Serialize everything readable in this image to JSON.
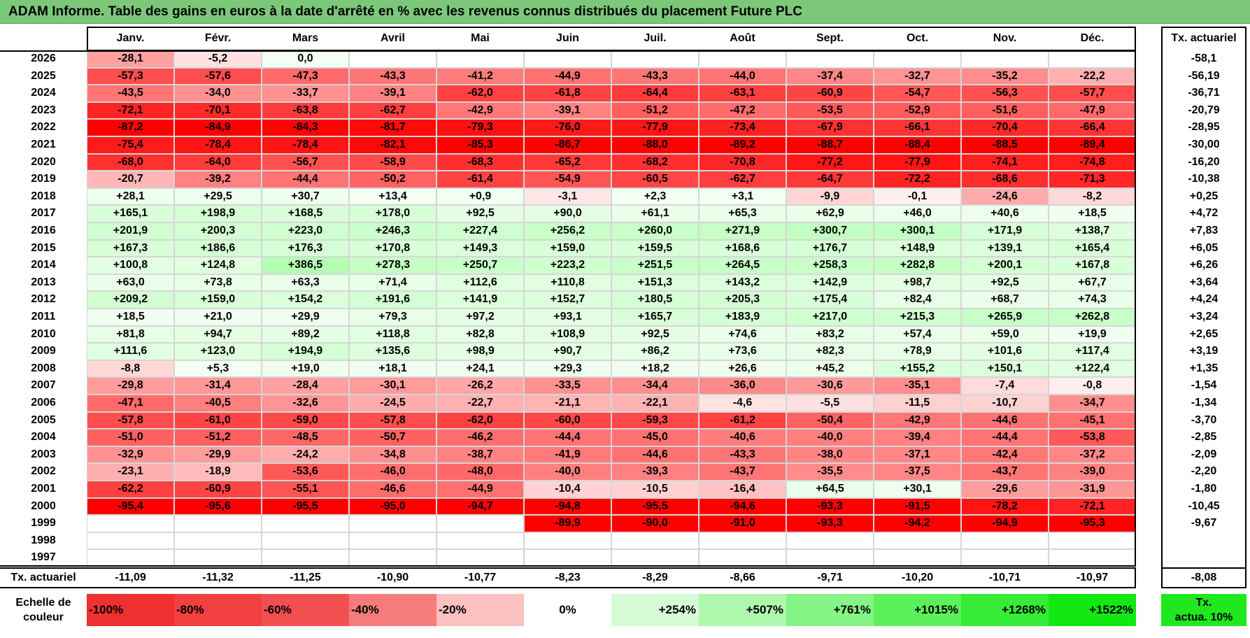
{
  "title": "ADAM Informe. Table des gains en euros à la date d'arrêté en % avec les revenus connus distribués du placement Future PLC",
  "colors": {
    "title_bg": "#7cc87a",
    "neg_strong": "#ff0000",
    "neg_light": "#ffe2e2",
    "pos_light": "#eefaee",
    "pos_strong": "#00ee00"
  },
  "columns": [
    "Janv.",
    "Févr.",
    "Mars",
    "Avril",
    "Mai",
    "Juin",
    "Juil.",
    "Août",
    "Sept.",
    "Oct.",
    "Nov.",
    "Déc."
  ],
  "annual_header": "Tx. actuariel",
  "rows": [
    {
      "year": "2026",
      "values": [
        "-28,1",
        "-5,2",
        "0,0",
        "",
        "",
        "",
        "",
        "",
        "",
        "",
        "",
        ""
      ],
      "annual": "-58,1"
    },
    {
      "year": "2025",
      "values": [
        "-57,3",
        "-57,6",
        "-47,3",
        "-43,3",
        "-41,2",
        "-44,9",
        "-43,3",
        "-44,0",
        "-37,4",
        "-32,7",
        "-35,2",
        "-22,2"
      ],
      "annual": "-56,19"
    },
    {
      "year": "2024",
      "values": [
        "-43,5",
        "-34,0",
        "-33,7",
        "-39,1",
        "-62,0",
        "-61,8",
        "-64,4",
        "-63,1",
        "-60,9",
        "-54,7",
        "-56,3",
        "-57,7"
      ],
      "annual": "-36,71"
    },
    {
      "year": "2023",
      "values": [
        "-72,1",
        "-70,1",
        "-63,8",
        "-62,7",
        "-42,9",
        "-39,1",
        "-51,2",
        "-47,2",
        "-53,5",
        "-52,9",
        "-51,6",
        "-47,9"
      ],
      "annual": "-20,79"
    },
    {
      "year": "2022",
      "values": [
        "-87,2",
        "-84,9",
        "-84,3",
        "-81,7",
        "-79,3",
        "-76,0",
        "-77,9",
        "-73,4",
        "-67,9",
        "-66,1",
        "-70,4",
        "-66,4"
      ],
      "annual": "-28,95"
    },
    {
      "year": "2021",
      "values": [
        "-75,4",
        "-78,4",
        "-78,4",
        "-82,1",
        "-85,3",
        "-86,7",
        "-88,0",
        "-89,2",
        "-88,7",
        "-88,4",
        "-88,5",
        "-89,4"
      ],
      "annual": "-30,00"
    },
    {
      "year": "2020",
      "values": [
        "-68,0",
        "-64,0",
        "-56,7",
        "-58,9",
        "-68,3",
        "-65,2",
        "-68,2",
        "-70,8",
        "-77,2",
        "-77,9",
        "-74,1",
        "-74,8"
      ],
      "annual": "-16,20"
    },
    {
      "year": "2019",
      "values": [
        "-20,7",
        "-39,2",
        "-44,4",
        "-50,2",
        "-61,4",
        "-54,9",
        "-60,5",
        "-62,7",
        "-64,7",
        "-72,2",
        "-68,6",
        "-71,3"
      ],
      "annual": "-10,38"
    },
    {
      "year": "2018",
      "values": [
        "+28,1",
        "+29,5",
        "+30,7",
        "+13,4",
        "+0,9",
        "-3,1",
        "+2,3",
        "+3,1",
        "-9,9",
        "-0,1",
        "-24,6",
        "-8,2"
      ],
      "annual": "+0,25"
    },
    {
      "year": "2017",
      "values": [
        "+165,1",
        "+198,9",
        "+168,5",
        "+178,0",
        "+92,5",
        "+90,0",
        "+61,1",
        "+65,3",
        "+62,9",
        "+46,0",
        "+40,6",
        "+18,5"
      ],
      "annual": "+4,72"
    },
    {
      "year": "2016",
      "values": [
        "+201,9",
        "+200,3",
        "+223,0",
        "+246,3",
        "+227,4",
        "+256,2",
        "+260,0",
        "+271,9",
        "+300,7",
        "+300,1",
        "+171,9",
        "+138,7"
      ],
      "annual": "+7,83"
    },
    {
      "year": "2015",
      "values": [
        "+167,3",
        "+186,6",
        "+176,3",
        "+170,8",
        "+149,3",
        "+159,0",
        "+159,5",
        "+168,6",
        "+176,7",
        "+148,9",
        "+139,1",
        "+165,4"
      ],
      "annual": "+6,05"
    },
    {
      "year": "2014",
      "values": [
        "+100,8",
        "+124,8",
        "+386,5",
        "+278,3",
        "+250,7",
        "+223,2",
        "+251,5",
        "+264,5",
        "+258,3",
        "+282,8",
        "+200,1",
        "+167,8"
      ],
      "annual": "+6,26"
    },
    {
      "year": "2013",
      "values": [
        "+63,0",
        "+73,8",
        "+63,3",
        "+71,4",
        "+112,6",
        "+110,8",
        "+151,3",
        "+143,2",
        "+142,9",
        "+98,7",
        "+92,5",
        "+67,7"
      ],
      "annual": "+3,64"
    },
    {
      "year": "2012",
      "values": [
        "+209,2",
        "+159,0",
        "+154,2",
        "+191,6",
        "+141,9",
        "+152,7",
        "+180,5",
        "+205,3",
        "+175,4",
        "+82,4",
        "+68,7",
        "+74,3"
      ],
      "annual": "+4,24"
    },
    {
      "year": "2011",
      "values": [
        "+18,5",
        "+21,0",
        "+29,9",
        "+79,3",
        "+97,2",
        "+93,1",
        "+165,7",
        "+183,9",
        "+217,0",
        "+215,3",
        "+265,9",
        "+262,8"
      ],
      "annual": "+3,24"
    },
    {
      "year": "2010",
      "values": [
        "+81,8",
        "+94,7",
        "+89,2",
        "+118,8",
        "+82,8",
        "+108,9",
        "+92,5",
        "+74,6",
        "+83,2",
        "+57,4",
        "+59,0",
        "+19,9"
      ],
      "annual": "+2,65"
    },
    {
      "year": "2009",
      "values": [
        "+111,6",
        "+123,0",
        "+194,9",
        "+135,6",
        "+98,9",
        "+90,7",
        "+86,2",
        "+73,6",
        "+82,3",
        "+78,9",
        "+101,6",
        "+117,4"
      ],
      "annual": "+3,19"
    },
    {
      "year": "2008",
      "values": [
        "-8,8",
        "+5,3",
        "+19,0",
        "+18,1",
        "+24,1",
        "+29,3",
        "+18,2",
        "+26,6",
        "+45,2",
        "+155,2",
        "+150,1",
        "+122,4"
      ],
      "annual": "+1,35"
    },
    {
      "year": "2007",
      "values": [
        "-29,8",
        "-31,4",
        "-28,4",
        "-30,1",
        "-26,2",
        "-33,5",
        "-34,4",
        "-36,0",
        "-30,6",
        "-35,1",
        "-7,4",
        "-0,8"
      ],
      "annual": "-1,54"
    },
    {
      "year": "2006",
      "values": [
        "-47,1",
        "-40,5",
        "-32,6",
        "-24,5",
        "-22,7",
        "-21,1",
        "-22,1",
        "-4,6",
        "-5,5",
        "-11,5",
        "-10,7",
        "-34,7"
      ],
      "annual": "-1,34"
    },
    {
      "year": "2005",
      "values": [
        "-57,8",
        "-61,0",
        "-59,0",
        "-57,8",
        "-62,0",
        "-60,0",
        "-59,3",
        "-61,2",
        "-50,4",
        "-42,9",
        "-44,6",
        "-45,1"
      ],
      "annual": "-3,70"
    },
    {
      "year": "2004",
      "values": [
        "-51,0",
        "-51,2",
        "-48,5",
        "-50,7",
        "-46,2",
        "-44,4",
        "-45,0",
        "-40,6",
        "-40,0",
        "-39,4",
        "-44,4",
        "-53,8"
      ],
      "annual": "-2,85"
    },
    {
      "year": "2003",
      "values": [
        "-32,9",
        "-29,9",
        "-24,2",
        "-34,8",
        "-38,7",
        "-41,9",
        "-44,6",
        "-43,3",
        "-38,0",
        "-37,1",
        "-42,4",
        "-37,2"
      ],
      "annual": "-2,09"
    },
    {
      "year": "2002",
      "values": [
        "-23,1",
        "-18,9",
        "-53,6",
        "-46,0",
        "-48,0",
        "-40,0",
        "-39,3",
        "-43,7",
        "-35,5",
        "-37,5",
        "-43,7",
        "-39,0"
      ],
      "annual": "-2,20"
    },
    {
      "year": "2001",
      "values": [
        "-62,2",
        "-60,9",
        "-55,1",
        "-46,6",
        "-44,9",
        "-10,4",
        "-10,5",
        "-16,4",
        "+64,5",
        "+30,1",
        "-29,6",
        "-31,9"
      ],
      "annual": "-1,80"
    },
    {
      "year": "2000",
      "values": [
        "-95,4",
        "-95,6",
        "-95,5",
        "-95,0",
        "-94,7",
        "-94,8",
        "-95,5",
        "-94,6",
        "-93,3",
        "-91,5",
        "-78,2",
        "-72,1"
      ],
      "annual": "-10,45"
    },
    {
      "year": "1999",
      "values": [
        "",
        "",
        "",
        "",
        "",
        "-89,9",
        "-90,0",
        "-91,0",
        "-93,3",
        "-94,2",
        "-94,9",
        "-95,3"
      ],
      "annual": "-9,67"
    },
    {
      "year": "1998",
      "values": [
        "",
        "",
        "",
        "",
        "",
        "",
        "",
        "",
        "",
        "",
        "",
        ""
      ],
      "annual": ""
    },
    {
      "year": "1997",
      "values": [
        "",
        "",
        "",
        "",
        "",
        "",
        "",
        "",
        "",
        "",
        "",
        ""
      ],
      "annual": ""
    }
  ],
  "footer": {
    "label": "Tx. actuariel",
    "values": [
      "-11,09",
      "-11,32",
      "-11,25",
      "-10,90",
      "-10,77",
      "-8,23",
      "-8,29",
      "-8,66",
      "-9,71",
      "-10,20",
      "-10,71",
      "-10,97"
    ],
    "annual": "-8,08"
  },
  "legend": {
    "label_line1": "Echelle de",
    "label_line2": "couleur",
    "items": [
      {
        "text": "-100%",
        "color": "#ee3030",
        "align": "left"
      },
      {
        "text": "-80%",
        "color": "#f04040",
        "align": "left"
      },
      {
        "text": "-60%",
        "color": "#f25050",
        "align": "left"
      },
      {
        "text": "-40%",
        "color": "#f67c7c",
        "align": "left"
      },
      {
        "text": "-20%",
        "color": "#fbc0c0",
        "align": "left"
      },
      {
        "text": "0%",
        "color": "#ffffff",
        "align": "center"
      },
      {
        "text": "+254%",
        "color": "#d6fcd6",
        "align": "right"
      },
      {
        "text": "+507%",
        "color": "#aef8ae",
        "align": "right"
      },
      {
        "text": "+761%",
        "color": "#86f486",
        "align": "right"
      },
      {
        "text": "+1015%",
        "color": "#5cf05c",
        "align": "right"
      },
      {
        "text": "+1268%",
        "color": "#36ec36",
        "align": "right"
      },
      {
        "text": "+1522%",
        "color": "#12e812",
        "align": "right"
      }
    ],
    "annual_line1": "Tx.",
    "annual_line2": "actua. 10%",
    "annual_color": "#1fe81f"
  },
  "chart_data": {
    "type": "heatmap",
    "title": "ADAM Informe. Table des gains en euros à la date d'arrêté en % avec les revenus connus distribués du placement Future PLC",
    "x": [
      "Janv.",
      "Févr.",
      "Mars",
      "Avril",
      "Mai",
      "Juin",
      "Juil.",
      "Août",
      "Sept.",
      "Oct.",
      "Nov.",
      "Déc."
    ],
    "y": [
      "2026",
      "2025",
      "2024",
      "2023",
      "2022",
      "2021",
      "2020",
      "2019",
      "2018",
      "2017",
      "2016",
      "2015",
      "2014",
      "2013",
      "2012",
      "2011",
      "2010",
      "2009",
      "2008",
      "2007",
      "2006",
      "2005",
      "2004",
      "2003",
      "2002",
      "2001",
      "2000",
      "1999",
      "1998",
      "1997"
    ],
    "color_scale": {
      "min": -100,
      "max": 1522
    },
    "note_source": "values in rows[].values"
  }
}
